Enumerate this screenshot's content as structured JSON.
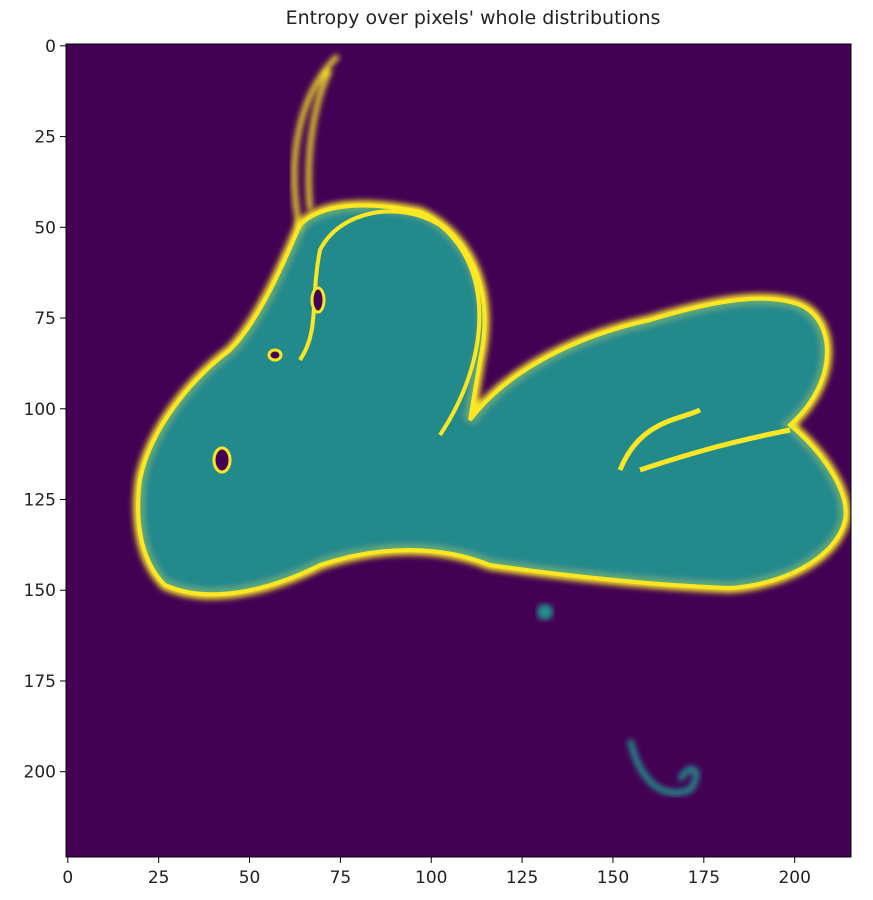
{
  "chart_data": {
    "type": "image",
    "title": "Entropy over pixels' whole distributions",
    "xlim": [
      -0.5,
      215.5
    ],
    "ylim": [
      223.5,
      -0.5
    ],
    "xticks": [
      0,
      25,
      50,
      75,
      100,
      125,
      150,
      175,
      200
    ],
    "yticks": [
      0,
      25,
      50,
      75,
      100,
      125,
      150,
      175,
      200
    ]
  }
}
